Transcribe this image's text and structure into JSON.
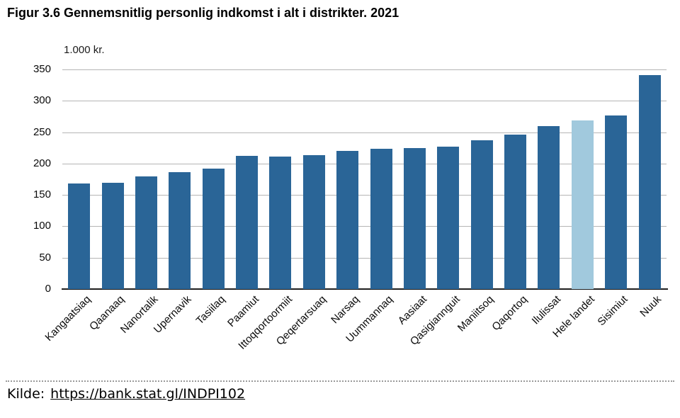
{
  "title": "Figur 3.6 Gennemsnitlig personlig indkomst i alt i distrikter. 2021",
  "source": {
    "prefix": "Kilde:",
    "link_text": "https://bank.stat.gl/INDPI102"
  },
  "chart_data": {
    "type": "bar",
    "title": "Figur 3.6 Gennemsnitlig personlig indkomst i alt i distrikter. 2021",
    "unit_label": "1.000 kr.",
    "categories": [
      "Kangaatsiaq",
      "Qaanaaq",
      "Nanortalik",
      "Upernavik",
      "Tasiilaq",
      "Paamiut",
      "Ittoqqortoormiit",
      "Qeqertarsuaq",
      "Narsaq",
      "Uummannaq",
      "Aasiaat",
      "Qasigiannguit",
      "Maniitsoq",
      "Qaqortoq",
      "Ilulissat",
      "Hele landet",
      "Sisimiut",
      "Nuuk"
    ],
    "values": [
      168,
      169,
      180,
      186,
      192,
      212,
      211,
      213,
      220,
      224,
      225,
      227,
      237,
      246,
      260,
      269,
      277,
      341
    ],
    "highlight_category": "Hele landet",
    "highlight_index": 15,
    "bar_color": "#2a6597",
    "highlight_color": "#a1c9dd",
    "ylim": [
      0,
      350
    ],
    "yticks": [
      0,
      50,
      100,
      150,
      200,
      250,
      300,
      350
    ],
    "grid": true,
    "gridline_color": "#b5b5b5",
    "legend": "none"
  }
}
